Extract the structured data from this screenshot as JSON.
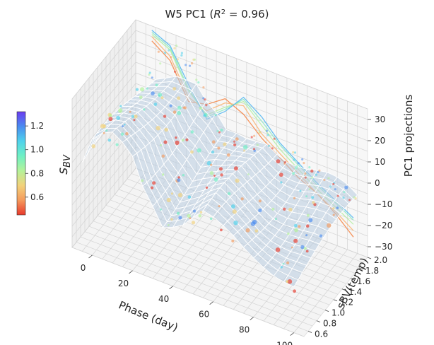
{
  "chart_data": {
    "type": "scatter",
    "subtype": "3d-surface-with-scatter",
    "title_prefix": "W5 PC1 (",
    "title_math": "R",
    "title_sup": "2",
    "title_suffix": " = 0.96)",
    "xlabel": "Phase (day)",
    "ylabel": "sBV(temp)",
    "zlabel": "PC1 projections",
    "xlim": [
      -10,
      105
    ],
    "ylim": [
      0.5,
      2.0
    ],
    "zlim": [
      -35,
      35
    ],
    "xticks": [
      "0",
      "20",
      "40",
      "60",
      "80",
      "100"
    ],
    "yticks": [
      "0.6",
      "0.8",
      "1.0",
      "1.2",
      "1.4",
      "1.6",
      "1.8",
      "2.0"
    ],
    "zticks": [
      "30",
      "20",
      "10",
      "0",
      "−10",
      "−20",
      "−30"
    ],
    "colorbar": {
      "label_main": "s",
      "label_sub": "BV",
      "min": 0.45,
      "max": 1.32,
      "ticks": [
        "1.2",
        "1.0",
        "0.8",
        "0.6"
      ],
      "tick_values": [
        1.2,
        1.0,
        0.8,
        0.6
      ],
      "colormap": [
        "#e8392b",
        "#f59a5c",
        "#f2d27b",
        "#b4f29a",
        "#6ff0c4",
        "#4fd2ec",
        "#4a8cf0",
        "#6a3cf0"
      ]
    },
    "projection_lines": [
      {
        "sBV": 0.55,
        "color": "#f4894d",
        "values": [
          28,
          22,
          6,
          8,
          14,
          10,
          2,
          -4,
          -10,
          -14,
          -20,
          -28
        ]
      },
      {
        "sBV": 0.75,
        "color": "#f7b77a",
        "values": [
          30,
          24,
          8,
          5,
          12,
          14,
          4,
          -2,
          -8,
          -14,
          -19,
          -25
        ]
      },
      {
        "sBV": 0.9,
        "color": "#b9eea5",
        "values": [
          31,
          27,
          11,
          3,
          10,
          16,
          8,
          0,
          -6,
          -12,
          -17,
          -22
        ]
      },
      {
        "sBV": 1.05,
        "color": "#8fe9c8",
        "values": [
          32,
          28,
          12,
          2,
          9,
          17,
          10,
          2,
          -4,
          -10,
          -15,
          -20
        ]
      },
      {
        "sBV": 1.25,
        "color": "#5ab8ef",
        "values": [
          33,
          29,
          14,
          1,
          8,
          18,
          12,
          3,
          -3,
          -9,
          -14,
          -19
        ]
      }
    ],
    "surface_profile_phase": [
      -5,
      2,
      10,
      18,
      26,
      35,
      45,
      55,
      65,
      75,
      85,
      95,
      100
    ],
    "surface_profile_value": [
      5,
      18,
      22,
      20,
      8,
      -5,
      -3,
      3,
      -1,
      -4,
      -6,
      -9,
      -11
    ],
    "scatter_note": "points colored by sBV scattered around surface and projections"
  }
}
